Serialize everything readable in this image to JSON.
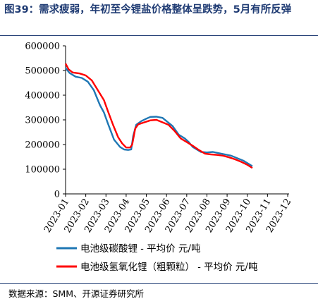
{
  "figure": {
    "title": "图39：需求疲弱，年初至今锂盐价格整体呈跌势，5月有所反弹",
    "source": "数据来源：SMM、开源证券研究所"
  },
  "chart_data": {
    "type": "line",
    "title": "",
    "xlabel": "",
    "ylabel": "",
    "ylim": [
      0,
      600000
    ],
    "yticks": [
      0,
      100000,
      200000,
      300000,
      400000,
      500000,
      600000
    ],
    "categories": [
      "2023-01",
      "2023-02",
      "2023-03",
      "2023-04",
      "2023-05",
      "2023-06",
      "2023-07",
      "2023-08",
      "2023-09",
      "2023-10",
      "2023-11",
      "2023-12"
    ],
    "grid": false,
    "legend_position": "bottom",
    "series": [
      {
        "name": "电池级碳酸锂 - 平均价 元/吨",
        "color": "#1f77b4",
        "points": [
          [
            0.0,
            510000
          ],
          [
            0.2,
            490000
          ],
          [
            0.5,
            475000
          ],
          [
            0.8,
            470000
          ],
          [
            1.1,
            455000
          ],
          [
            1.4,
            420000
          ],
          [
            1.7,
            360000
          ],
          [
            1.9,
            330000
          ],
          [
            2.1,
            285000
          ],
          [
            2.4,
            220000
          ],
          [
            2.7,
            190000
          ],
          [
            2.9,
            180000
          ],
          [
            3.1,
            178000
          ],
          [
            3.25,
            180000
          ],
          [
            3.35,
            235000
          ],
          [
            3.5,
            280000
          ],
          [
            3.75,
            295000
          ],
          [
            4.0,
            305000
          ],
          [
            4.2,
            312000
          ],
          [
            4.5,
            313000
          ],
          [
            4.8,
            308000
          ],
          [
            5.0,
            295000
          ],
          [
            5.3,
            275000
          ],
          [
            5.6,
            240000
          ],
          [
            5.9,
            225000
          ],
          [
            6.1,
            210000
          ],
          [
            6.3,
            190000
          ],
          [
            6.5,
            180000
          ],
          [
            6.7,
            170000
          ],
          [
            7.0,
            168000
          ],
          [
            7.3,
            170000
          ],
          [
            7.6,
            165000
          ],
          [
            7.9,
            160000
          ],
          [
            8.2,
            155000
          ],
          [
            8.5,
            145000
          ],
          [
            8.8,
            135000
          ],
          [
            9.1,
            120000
          ],
          [
            9.25,
            112000
          ]
        ]
      },
      {
        "name": "电池级氢氧化锂（粗颗粒） - 平均价 元/吨",
        "color": "#ff0000",
        "points": [
          [
            0.0,
            528000
          ],
          [
            0.15,
            505000
          ],
          [
            0.35,
            492000
          ],
          [
            0.7,
            488000
          ],
          [
            1.0,
            480000
          ],
          [
            1.3,
            460000
          ],
          [
            1.6,
            420000
          ],
          [
            1.9,
            380000
          ],
          [
            2.1,
            335000
          ],
          [
            2.35,
            280000
          ],
          [
            2.6,
            230000
          ],
          [
            2.8,
            205000
          ],
          [
            3.0,
            188000
          ],
          [
            3.2,
            188000
          ],
          [
            3.3,
            200000
          ],
          [
            3.45,
            265000
          ],
          [
            3.6,
            282000
          ],
          [
            3.9,
            290000
          ],
          [
            4.2,
            298000
          ],
          [
            4.5,
            300000
          ],
          [
            4.8,
            290000
          ],
          [
            5.1,
            280000
          ],
          [
            5.4,
            255000
          ],
          [
            5.7,
            225000
          ],
          [
            6.0,
            210000
          ],
          [
            6.3,
            195000
          ],
          [
            6.6,
            178000
          ],
          [
            6.9,
            163000
          ],
          [
            7.2,
            160000
          ],
          [
            7.5,
            158000
          ],
          [
            7.8,
            155000
          ],
          [
            8.1,
            148000
          ],
          [
            8.4,
            140000
          ],
          [
            8.7,
            130000
          ],
          [
            9.0,
            118000
          ],
          [
            9.25,
            105000
          ]
        ]
      }
    ]
  }
}
